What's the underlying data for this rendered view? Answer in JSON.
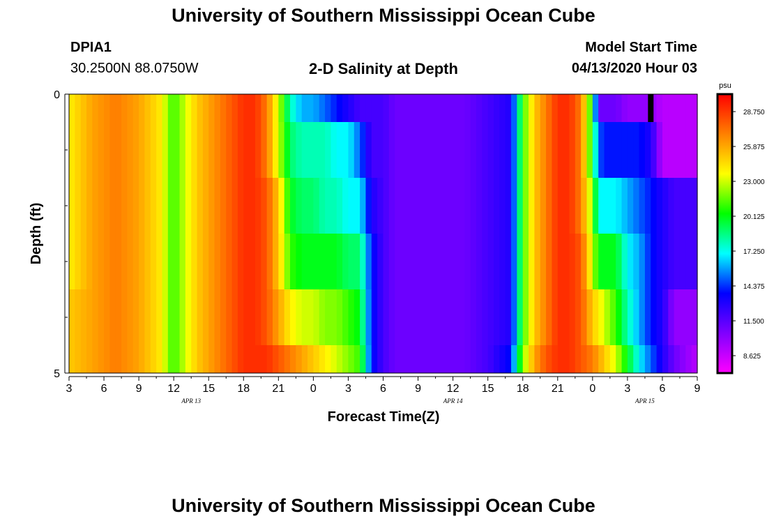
{
  "header": {
    "title_top": "University of Southern Mississippi Ocean Cube",
    "title_bottom": "University of Southern Mississippi Ocean Cube",
    "station_id": "DPIA1",
    "station_coords": "30.2500N 88.0750W",
    "plot_title": "2-D Salinity at Depth",
    "model_start_label": "Model Start Time",
    "model_start_value": "04/13/2020 Hour 03"
  },
  "chart_data": {
    "type": "heatmap",
    "title": "2-D Salinity at Depth",
    "xlabel": "Forecast Time(Z)",
    "ylabel": "Depth (ft)",
    "ylim": [
      0,
      5
    ],
    "y_tick_labels": [
      "0",
      "5"
    ],
    "y_minor_ticks": [
      1,
      2,
      3,
      4
    ],
    "x_hours_from_start": [
      0,
      54
    ],
    "x_tick_labels": [
      "3",
      "6",
      "9",
      "12",
      "15",
      "18",
      "21",
      "0",
      "3",
      "6",
      "9",
      "12",
      "15",
      "18",
      "21",
      "0",
      "3",
      "6",
      "9"
    ],
    "date_labels": [
      {
        "text": "APR 13",
        "hour": 10.5
      },
      {
        "text": "APR 14",
        "hour": 33
      },
      {
        "text": "APR 15",
        "hour": 49.5
      }
    ],
    "current_time_marker_hour": 50,
    "depth_rows": [
      0.25,
      1.0,
      2.0,
      3.0,
      4.0,
      4.75
    ],
    "row_bands_ft": [
      [
        0,
        0.5
      ],
      [
        0.5,
        1.5
      ],
      [
        1.5,
        2.5
      ],
      [
        2.5,
        3.5
      ],
      [
        3.5,
        4.5
      ],
      [
        4.5,
        5
      ]
    ],
    "series_hours": [
      0,
      2,
      4,
      6,
      7,
      8,
      8.5,
      9,
      10,
      11,
      12,
      13,
      14,
      15,
      16,
      17,
      18,
      19,
      20,
      21,
      22,
      23,
      24,
      25,
      26,
      27,
      28,
      30,
      32,
      33,
      34,
      36,
      38,
      39,
      40,
      41,
      42,
      43,
      44,
      45,
      45.5,
      46,
      47,
      48,
      49,
      50,
      51,
      52,
      54
    ],
    "salinity_psu": [
      [
        24,
        26,
        27,
        26,
        25,
        24,
        22,
        21,
        23,
        25,
        26,
        27,
        28,
        29,
        29,
        27,
        23,
        18,
        16,
        16,
        15,
        14,
        13,
        12,
        12,
        12,
        11,
        11,
        11,
        11,
        11,
        12,
        13,
        21,
        25,
        27,
        29,
        29,
        27,
        20,
        11,
        11,
        11,
        10,
        10,
        10,
        9,
        9,
        9
      ],
      [
        24,
        26,
        27,
        26,
        25,
        24,
        22,
        21,
        23,
        25,
        26,
        27,
        28,
        29,
        29,
        27,
        23,
        19,
        18,
        18,
        18,
        17,
        17,
        15,
        12,
        12,
        11,
        11,
        11,
        11,
        11,
        12,
        13,
        21,
        25,
        27,
        29,
        29,
        27,
        20,
        15,
        14,
        14,
        14,
        14,
        13,
        9,
        9,
        9
      ],
      [
        24,
        26,
        27,
        26,
        25,
        24,
        22,
        21,
        23,
        25,
        26,
        27,
        28,
        29,
        29,
        28,
        25,
        20,
        19,
        19,
        18,
        18,
        17,
        17,
        13,
        12,
        11,
        11,
        11,
        11,
        11,
        12,
        13,
        21,
        25,
        27,
        29,
        29,
        27,
        22,
        17,
        17,
        17,
        16,
        15,
        14,
        13,
        12,
        12
      ],
      [
        24,
        26,
        27,
        26,
        25,
        24,
        22,
        21,
        23,
        25,
        26,
        27,
        28,
        29,
        29,
        28,
        25,
        21,
        20,
        20,
        20,
        20,
        19,
        19,
        14,
        12,
        11,
        11,
        11,
        11,
        11,
        12,
        13,
        21,
        25,
        27,
        29,
        29,
        28,
        23,
        20,
        20,
        20,
        17,
        16,
        14,
        13,
        12,
        12
      ],
      [
        25,
        26,
        27,
        26,
        25,
        24,
        22,
        21,
        23,
        25,
        26,
        27,
        28,
        29,
        29,
        28,
        26,
        24,
        23,
        23,
        22,
        22,
        21,
        20,
        14,
        12,
        11,
        11,
        11,
        11,
        11,
        12,
        13,
        21,
        25,
        27,
        29,
        29,
        28,
        25,
        24,
        23,
        21,
        18,
        16,
        14,
        13,
        10,
        10
      ],
      [
        25,
        26,
        27,
        26,
        25,
        24,
        22,
        21,
        23,
        25,
        26,
        27,
        28,
        29,
        29,
        29,
        28,
        27,
        26,
        25,
        24,
        23,
        22,
        21,
        14,
        12,
        11,
        11,
        11,
        11,
        11,
        12,
        14,
        22,
        26,
        28,
        29,
        29,
        28,
        27,
        26,
        25,
        23,
        20,
        17,
        15,
        13,
        11,
        9
      ]
    ],
    "colorbar": {
      "unit": "psu",
      "range": [
        7.19,
        30.19
      ],
      "tick_labels": [
        "28.750",
        "25.875",
        "23.000",
        "20.125",
        "17.250",
        "14.375",
        "11.500",
        "8.625"
      ],
      "colors": [
        "#ff00ff",
        "#8000ff",
        "#0000ff",
        "#00ffff",
        "#00ff00",
        "#ffff00",
        "#ff8000",
        "#ff0000"
      ]
    }
  }
}
